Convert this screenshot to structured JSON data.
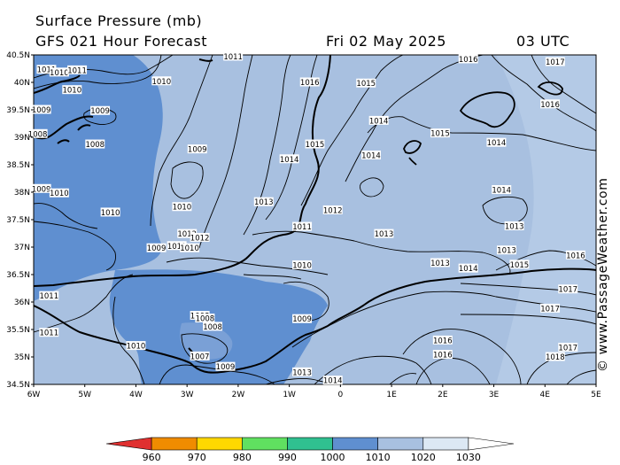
{
  "header": {
    "title": "Surface Pressure (mb)",
    "model": "GFS 021 Hour Forecast",
    "date": "Fri 02 May 2025",
    "time": "03 UTC"
  },
  "credit": "© www.PassageWeather.com",
  "map": {
    "lat_labels": [
      "40.5N",
      "40N",
      "39.5N",
      "39N",
      "38.5N",
      "38N",
      "37.5N",
      "37N",
      "36.5N",
      "36N",
      "35.5N",
      "35N",
      "34.5N"
    ],
    "lon_labels": [
      "6W",
      "5W",
      "4W",
      "3W",
      "2W",
      "1W",
      "0",
      "1E",
      "2E",
      "3E",
      "4E",
      "5E"
    ],
    "isobar_labels": [
      {
        "text": "1011",
        "lon": -5.75,
        "lat": 40.23
      },
      {
        "text": "1010",
        "lon": -5.5,
        "lat": 40.18
      },
      {
        "text": "1011",
        "lon": -5.15,
        "lat": 40.22
      },
      {
        "text": "1011",
        "lon": -2.1,
        "lat": 40.47
      },
      {
        "text": "1010",
        "lon": -3.5,
        "lat": 40.02
      },
      {
        "text": "1016",
        "lon": -0.6,
        "lat": 40.0
      },
      {
        "text": "1015",
        "lon": 0.5,
        "lat": 39.98
      },
      {
        "text": "1016",
        "lon": 2.5,
        "lat": 40.42
      },
      {
        "text": "1017",
        "lon": 4.2,
        "lat": 40.37
      },
      {
        "text": "1016",
        "lon": 4.1,
        "lat": 39.6
      },
      {
        "text": "1010",
        "lon": -5.25,
        "lat": 39.86
      },
      {
        "text": "1009",
        "lon": -5.85,
        "lat": 39.5
      },
      {
        "text": "1009",
        "lon": -4.7,
        "lat": 39.48
      },
      {
        "text": "1008",
        "lon": -5.92,
        "lat": 39.06
      },
      {
        "text": "1008",
        "lon": -4.8,
        "lat": 38.87
      },
      {
        "text": "1009",
        "lon": -2.8,
        "lat": 38.78
      },
      {
        "text": "1014",
        "lon": 0.75,
        "lat": 39.3
      },
      {
        "text": "1015",
        "lon": 1.95,
        "lat": 39.07
      },
      {
        "text": "1015",
        "lon": -0.5,
        "lat": 38.87
      },
      {
        "text": "1014",
        "lon": 3.05,
        "lat": 38.9
      },
      {
        "text": "1014",
        "lon": -1.0,
        "lat": 38.6
      },
      {
        "text": "1014",
        "lon": 0.6,
        "lat": 38.67
      },
      {
        "text": "1009",
        "lon": -5.85,
        "lat": 38.06
      },
      {
        "text": "1010",
        "lon": -5.5,
        "lat": 37.98
      },
      {
        "text": "1014",
        "lon": 3.15,
        "lat": 38.04
      },
      {
        "text": "1013",
        "lon": -1.5,
        "lat": 37.82
      },
      {
        "text": "1010",
        "lon": -3.1,
        "lat": 37.73
      },
      {
        "text": "1012",
        "lon": -0.15,
        "lat": 37.67
      },
      {
        "text": "1010",
        "lon": -4.5,
        "lat": 37.63
      },
      {
        "text": "1013",
        "lon": 3.4,
        "lat": 37.38
      },
      {
        "text": "1011",
        "lon": -0.75,
        "lat": 37.37
      },
      {
        "text": "1013",
        "lon": 0.85,
        "lat": 37.24
      },
      {
        "text": "1012",
        "lon": -3.0,
        "lat": 37.24
      },
      {
        "text": "1012",
        "lon": -2.75,
        "lat": 37.17
      },
      {
        "text": "1011",
        "lon": -3.2,
        "lat": 37.02
      },
      {
        "text": "1009",
        "lon": -3.6,
        "lat": 36.98
      },
      {
        "text": "1010",
        "lon": -2.95,
        "lat": 36.98
      },
      {
        "text": "1013",
        "lon": 3.25,
        "lat": 36.94
      },
      {
        "text": "1016",
        "lon": 4.6,
        "lat": 36.85
      },
      {
        "text": "1013",
        "lon": 1.95,
        "lat": 36.71
      },
      {
        "text": "1014",
        "lon": 2.5,
        "lat": 36.61
      },
      {
        "text": "1015",
        "lon": 3.5,
        "lat": 36.68
      },
      {
        "text": "1010",
        "lon": -0.75,
        "lat": 36.67
      },
      {
        "text": "1017",
        "lon": 4.45,
        "lat": 36.23
      },
      {
        "text": "1011",
        "lon": -5.7,
        "lat": 36.11
      },
      {
        "text": "1017",
        "lon": 4.1,
        "lat": 35.88
      },
      {
        "text": "1008",
        "lon": -2.75,
        "lat": 35.75
      },
      {
        "text": "1008",
        "lon": -2.65,
        "lat": 35.7
      },
      {
        "text": "1008",
        "lon": -2.5,
        "lat": 35.55
      },
      {
        "text": "1009",
        "lon": -0.75,
        "lat": 35.69
      },
      {
        "text": "1011",
        "lon": -5.7,
        "lat": 35.44
      },
      {
        "text": "1010",
        "lon": -4.0,
        "lat": 35.2
      },
      {
        "text": "1016",
        "lon": 2.0,
        "lat": 35.3
      },
      {
        "text": "1016",
        "lon": 2.0,
        "lat": 35.04
      },
      {
        "text": "1007",
        "lon": -2.75,
        "lat": 35.01
      },
      {
        "text": "1017",
        "lon": 4.45,
        "lat": 35.17
      },
      {
        "text": "1018",
        "lon": 4.2,
        "lat": 35.0
      },
      {
        "text": "1009",
        "lon": -2.25,
        "lat": 34.82
      },
      {
        "text": "1013",
        "lon": -0.75,
        "lat": 34.72
      },
      {
        "text": "1014",
        "lon": -0.15,
        "lat": 34.57
      }
    ]
  },
  "colorbar": {
    "ticks": [
      "960",
      "970",
      "980",
      "990",
      "1000",
      "1010",
      "1020",
      "1030"
    ],
    "colors": [
      "#e03030",
      "#f08c00",
      "#ffd800",
      "#60e060",
      "#30c090",
      "#5f8fd0",
      "#a8c0e0",
      "#dce8f4",
      "#ffffff"
    ]
  }
}
